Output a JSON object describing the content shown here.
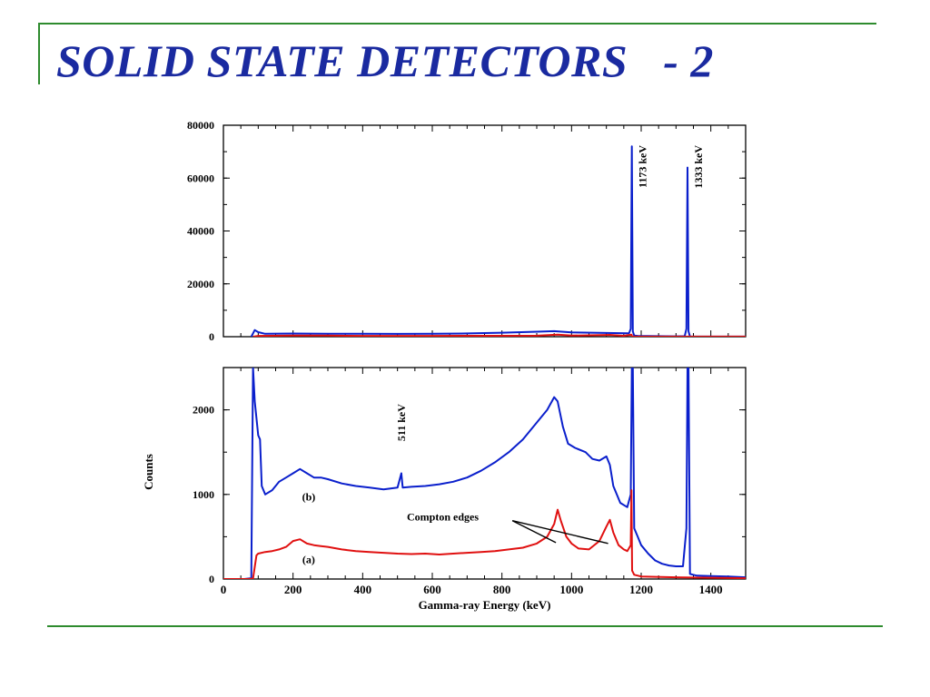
{
  "slide": {
    "title": "SOLID STATE DETECTORS   - 2"
  },
  "colors": {
    "title": "#1a2aa0",
    "rule": "#2e8b2e",
    "series_b": "#0a1fcc",
    "series_a": "#e01010"
  },
  "chart_data": [
    {
      "type": "line",
      "xlim": [
        0,
        1500
      ],
      "ylim": [
        0,
        80000
      ],
      "yticks": [
        "0",
        "20000",
        "40000",
        "60000",
        "80000"
      ],
      "yticks_values": [
        0,
        20000,
        40000,
        60000,
        80000
      ],
      "xticks": [],
      "annotations": [
        {
          "text": "1173 keV",
          "x": 1173
        },
        {
          "text": "1333 keV",
          "x": 1333
        }
      ],
      "series": [
        {
          "label_color": "#0a1fcc",
          "x": [
            80,
            90,
            100,
            120,
            200,
            300,
            400,
            500,
            600,
            700,
            800,
            900,
            950,
            1000,
            1100,
            1165,
            1170,
            1173,
            1176,
            1180,
            1190,
            1300,
            1325,
            1330,
            1333,
            1336,
            1340,
            1350,
            1500
          ],
          "y": [
            0,
            2500,
            1700,
            1100,
            1200,
            1150,
            1100,
            1050,
            1100,
            1250,
            1500,
            1900,
            2100,
            1600,
            1400,
            1300,
            3000,
            72000,
            2000,
            400,
            300,
            150,
            200,
            3000,
            64000,
            2000,
            100,
            50,
            50
          ]
        },
        {
          "label_color": "#e01010",
          "x": [
            85,
            100,
            200,
            300,
            400,
            600,
            900,
            960,
            1000,
            1100,
            1110,
            1150,
            1172,
            1174,
            1190,
            1500
          ],
          "y": [
            0,
            300,
            450,
            400,
            320,
            300,
            380,
            800,
            400,
            650,
            700,
            350,
            800,
            100,
            40,
            20
          ]
        }
      ]
    },
    {
      "type": "line",
      "xlim": [
        0,
        1500
      ],
      "ylim": [
        0,
        2500
      ],
      "yticks": [
        "0",
        "1000",
        "2000"
      ],
      "yticks_values": [
        0,
        1000,
        2000
      ],
      "xticks": [
        "0",
        "200",
        "400",
        "600",
        "800",
        "1000",
        "1200",
        "1400"
      ],
      "xticks_values": [
        0,
        200,
        400,
        600,
        800,
        1000,
        1200,
        1400
      ],
      "xlabel": "Gamma-ray Energy (keV)",
      "ylabel": "Counts",
      "annotations": [
        {
          "text": "511 keV",
          "x": 511,
          "y": 1850
        },
        {
          "text": "(b)",
          "x": 245,
          "y": 930
        },
        {
          "text": "(a)",
          "x": 245,
          "y": 190
        },
        {
          "text": "Compton edges",
          "x": 630,
          "y": 690
        }
      ],
      "series": [
        {
          "label": "(b)",
          "x": [
            0,
            60,
            80,
            85,
            90,
            95,
            100,
            105,
            110,
            120,
            140,
            160,
            180,
            200,
            220,
            240,
            260,
            280,
            300,
            340,
            380,
            420,
            460,
            500,
            511,
            515,
            540,
            580,
            620,
            660,
            700,
            740,
            780,
            820,
            860,
            900,
            930,
            950,
            960,
            975,
            990,
            1010,
            1040,
            1060,
            1080,
            1100,
            1110,
            1120,
            1140,
            1160,
            1170,
            1173,
            1176,
            1180,
            1190,
            1200,
            1220,
            1240,
            1260,
            1280,
            1300,
            1320,
            1330,
            1333,
            1336,
            1340,
            1360,
            1400,
            1450,
            1500
          ],
          "y": [
            0,
            0,
            10,
            2500,
            2100,
            1900,
            1700,
            1650,
            1100,
            1000,
            1050,
            1150,
            1200,
            1250,
            1300,
            1250,
            1200,
            1200,
            1180,
            1130,
            1100,
            1080,
            1060,
            1080,
            1250,
            1080,
            1090,
            1100,
            1120,
            1150,
            1200,
            1280,
            1380,
            1500,
            1650,
            1850,
            2000,
            2150,
            2100,
            1800,
            1600,
            1550,
            1500,
            1420,
            1400,
            1450,
            1350,
            1100,
            900,
            850,
            1000,
            2500,
            2500,
            600,
            500,
            400,
            300,
            220,
            180,
            160,
            150,
            150,
            600,
            2500,
            2500,
            60,
            40,
            35,
            30,
            20
          ]
        },
        {
          "label": "(a)",
          "x": [
            0,
            70,
            85,
            95,
            100,
            120,
            140,
            160,
            180,
            200,
            220,
            240,
            260,
            280,
            300,
            340,
            380,
            420,
            460,
            500,
            540,
            580,
            620,
            660,
            700,
            740,
            780,
            820,
            860,
            900,
            930,
            950,
            960,
            970,
            985,
            1000,
            1020,
            1050,
            1080,
            1100,
            1110,
            1120,
            1135,
            1150,
            1160,
            1170,
            1172,
            1174,
            1180,
            1200,
            1300,
            1400,
            1500
          ],
          "y": [
            0,
            0,
            5,
            280,
            300,
            320,
            330,
            350,
            380,
            450,
            470,
            420,
            400,
            390,
            380,
            350,
            330,
            320,
            310,
            300,
            295,
            300,
            290,
            300,
            310,
            320,
            330,
            350,
            370,
            420,
            500,
            650,
            820,
            680,
            500,
            420,
            360,
            350,
            450,
            620,
            700,
            550,
            400,
            350,
            330,
            400,
            1050,
            100,
            50,
            30,
            20,
            15,
            10
          ]
        }
      ],
      "arrows": [
        {
          "from": [
            830,
            690
          ],
          "to": [
            955,
            430
          ]
        },
        {
          "from": [
            830,
            690
          ],
          "to": [
            1105,
            420
          ]
        }
      ]
    }
  ]
}
